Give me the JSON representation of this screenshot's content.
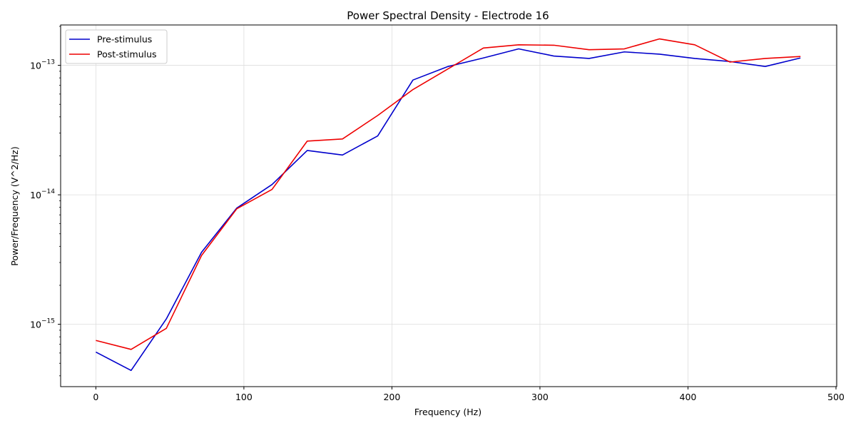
{
  "chart_data": {
    "type": "line",
    "title": "Power Spectral Density - Electrode 16",
    "xlabel": "Frequency (Hz)",
    "ylabel": "Power/Frequency (V^2/Hz)",
    "xlim": [
      -23.8,
      500.5
    ],
    "ylim": [
      3.3e-16,
      2.05e-13
    ],
    "yscale": "log",
    "grid": true,
    "legend": "upper left",
    "x_ticks": [
      0,
      100,
      200,
      300,
      400,
      500
    ],
    "y_ticks": [
      {
        "value": 1e-15,
        "label": "10^-15"
      },
      {
        "value": 1e-14,
        "label": "10^-14"
      },
      {
        "value": 1e-13,
        "label": "10^-13"
      }
    ],
    "x": [
      0,
      23.8,
      47.6,
      71.4,
      95.2,
      119,
      142.8,
      166.6,
      190.4,
      214.2,
      238,
      261.8,
      285.6,
      309.4,
      333.2,
      357,
      380.8,
      404.6,
      428.4,
      452.2,
      476
    ],
    "series": [
      {
        "name": "Pre-stimulus",
        "color": "#0000cc",
        "values": [
          6.1e-16,
          4.4e-16,
          1.1e-15,
          3.6e-15,
          7.9e-15,
          1.2e-14,
          2.2e-14,
          2.03e-14,
          2.85e-14,
          7.7e-14,
          9.8e-14,
          1.14e-13,
          1.34e-13,
          1.18e-13,
          1.13e-13,
          1.27e-13,
          1.22e-13,
          1.13e-13,
          1.07e-13,
          9.8e-14,
          1.14e-13
        ]
      },
      {
        "name": "Post-stimulus",
        "color": "#ee0000",
        "values": [
          7.5e-16,
          6.4e-16,
          9.3e-16,
          3.4e-15,
          7.8e-15,
          1.1e-14,
          2.6e-14,
          2.7e-14,
          4.1e-14,
          6.5e-14,
          9.4e-14,
          1.36e-13,
          1.44e-13,
          1.43e-13,
          1.32e-13,
          1.34e-13,
          1.6e-13,
          1.44e-13,
          1.06e-13,
          1.13e-13,
          1.17e-13
        ]
      }
    ]
  }
}
